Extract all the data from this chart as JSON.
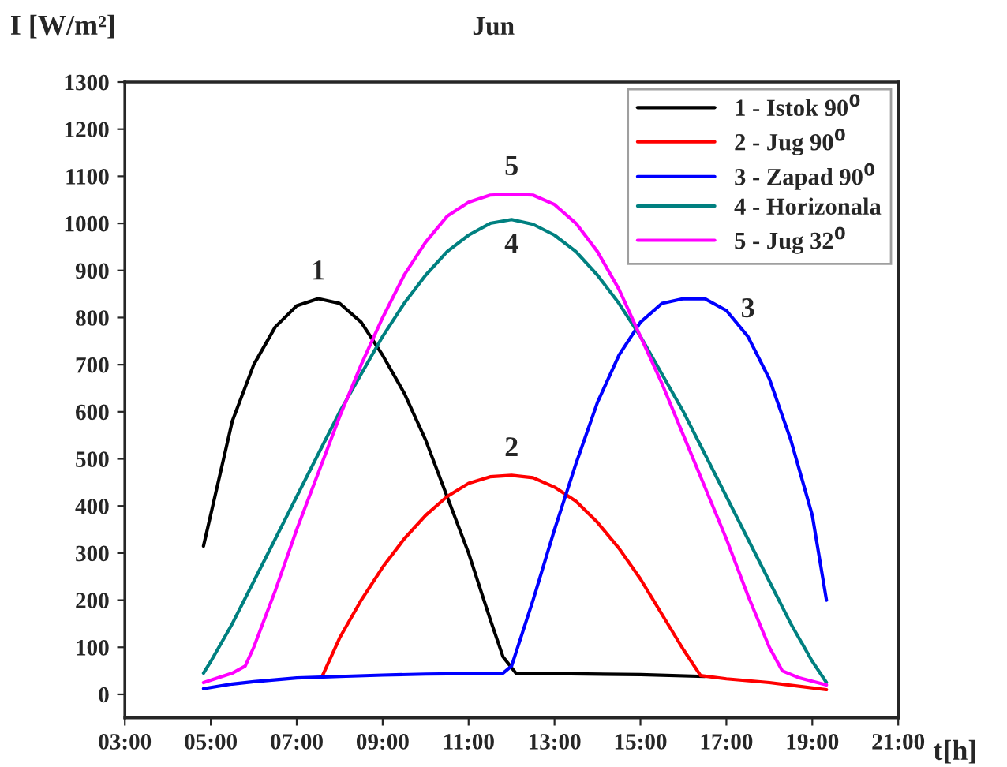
{
  "chart_data": {
    "type": "line",
    "title": "Jun",
    "xlabel": "t[h]",
    "ylabel": "I [W/m²]",
    "xlim": [
      3,
      21
    ],
    "xticks": [
      {
        "value": 3,
        "label": "03:00"
      },
      {
        "value": 5,
        "label": "05:00"
      },
      {
        "value": 7,
        "label": "07:00"
      },
      {
        "value": 9,
        "label": "09:00"
      },
      {
        "value": 11,
        "label": "11:00"
      },
      {
        "value": 13,
        "label": "13:00"
      },
      {
        "value": 15,
        "label": "15:00"
      },
      {
        "value": 17,
        "label": "17:00"
      },
      {
        "value": 19,
        "label": "19:00"
      },
      {
        "value": 21,
        "label": "21:00"
      }
    ],
    "ylim": [
      -50,
      1300
    ],
    "yticks": [
      0,
      100,
      200,
      300,
      400,
      500,
      600,
      700,
      800,
      900,
      1000,
      1100,
      1200,
      1300
    ],
    "grid": false,
    "legend": "top right",
    "line_style": "solid",
    "marker": "none",
    "series": [
      {
        "name": "1 - Istok 90$^{0}$",
        "color": "#000000",
        "x": [
          4.83,
          5.5,
          6,
          6.5,
          7,
          7.5,
          8,
          8.5,
          9,
          9.5,
          10,
          10.5,
          11,
          11.5,
          11.8,
          12.1,
          13,
          15,
          16.5
        ],
        "values": [
          315,
          580,
          700,
          780,
          825,
          840,
          830,
          790,
          720,
          640,
          540,
          420,
          300,
          160,
          80,
          45,
          44,
          42,
          38
        ]
      },
      {
        "name": "2 - Jug 90$^{0}$",
        "color": "#ff0000",
        "x": [
          7.6,
          8,
          8.5,
          9,
          9.5,
          10,
          10.5,
          11,
          11.5,
          12,
          12.5,
          13,
          13.5,
          14,
          14.5,
          15,
          15.5,
          16,
          16.4,
          17,
          18,
          19.33
        ],
        "values": [
          40,
          120,
          200,
          270,
          330,
          380,
          420,
          448,
          462,
          465,
          460,
          440,
          410,
          365,
          310,
          245,
          170,
          95,
          40,
          33,
          25,
          10
        ]
      },
      {
        "name": "3 - Zapad 90$^{0}$",
        "color": "#0000ff",
        "x": [
          4.83,
          5.5,
          6,
          7,
          8,
          9,
          10,
          11,
          11.8,
          12,
          12.5,
          13,
          13.5,
          14,
          14.5,
          15,
          15.5,
          16,
          16.5,
          17,
          17.5,
          18,
          18.5,
          19,
          19.33
        ],
        "values": [
          12,
          22,
          27,
          35,
          38,
          41,
          43,
          44,
          45,
          60,
          200,
          350,
          490,
          620,
          720,
          790,
          830,
          840,
          840,
          815,
          760,
          670,
          540,
          380,
          200
        ]
      },
      {
        "name": "4 - Horizonala",
        "color": "#008080",
        "x": [
          4.83,
          5,
          5.5,
          6,
          6.5,
          7,
          7.5,
          8,
          8.5,
          9,
          9.5,
          10,
          10.5,
          11,
          11.5,
          12,
          12.5,
          13,
          13.5,
          14,
          14.5,
          15,
          15.5,
          16,
          16.5,
          17,
          17.5,
          18,
          18.5,
          19,
          19.33
        ],
        "values": [
          45,
          70,
          150,
          240,
          330,
          420,
          510,
          600,
          680,
          760,
          830,
          890,
          940,
          975,
          1000,
          1008,
          998,
          975,
          940,
          890,
          830,
          760,
          680,
          600,
          510,
          420,
          330,
          240,
          150,
          70,
          25
        ]
      },
      {
        "name": "5 - Jug 32$^{0}$",
        "color": "#ff00ff",
        "x": [
          4.83,
          5.5,
          5.8,
          6,
          6.5,
          7,
          7.5,
          8,
          8.5,
          9,
          9.5,
          10,
          10.5,
          11,
          11.5,
          12,
          12.5,
          13,
          13.5,
          14,
          14.5,
          15,
          15.5,
          16,
          16.5,
          17,
          17.5,
          18,
          18.3,
          18.7,
          19.33
        ],
        "values": [
          25,
          45,
          60,
          100,
          220,
          350,
          470,
          590,
          700,
          800,
          890,
          960,
          1015,
          1045,
          1060,
          1062,
          1060,
          1040,
          1000,
          940,
          860,
          760,
          660,
          550,
          440,
          330,
          210,
          100,
          50,
          35,
          20
        ]
      }
    ],
    "annotations": [
      {
        "text": "1",
        "x": 7.5,
        "y": 840
      },
      {
        "text": "2",
        "x": 12,
        "y": 465
      },
      {
        "text": "3",
        "x": 17.5,
        "y": 760
      },
      {
        "text": "4",
        "x": 12,
        "y": 1008
      },
      {
        "text": "5",
        "x": 12,
        "y": 1062
      }
    ]
  }
}
